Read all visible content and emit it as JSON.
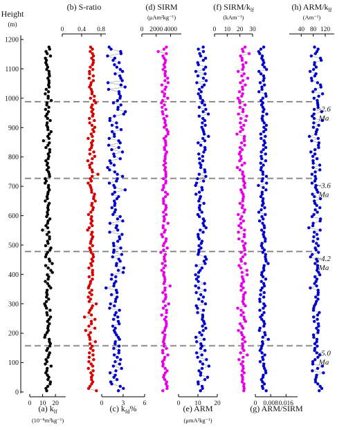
{
  "chart_data": {
    "type": "scatter",
    "y_axis": {
      "label": "Height",
      "unit": "(m)",
      "range": [
        0,
        1200
      ],
      "ticks": [
        0,
        100,
        200,
        300,
        400,
        500,
        600,
        700,
        800,
        900,
        1000,
        1100,
        1200
      ]
    },
    "age_boundaries": [
      {
        "height": 988,
        "label": "~2.6",
        "unit": "Ma"
      },
      {
        "height": 727,
        "label": "~3.6",
        "unit": "Ma"
      },
      {
        "height": 478,
        "label": "~4.2",
        "unit": "Ma"
      },
      {
        "height": 157,
        "label": "~5.0",
        "unit": "Ma"
      }
    ],
    "panels": [
      {
        "id": "a",
        "label": "(a) k",
        "sub": "lf",
        "unit": "(10⁻⁸m³kg⁻¹)",
        "label_pos": "bottom",
        "axis_pos": "bottom",
        "range": [
          0,
          28
        ],
        "ticks": [
          0,
          10,
          20
        ],
        "color": "#000000",
        "center": 14,
        "spread": 2.2
      },
      {
        "id": "b",
        "label": "(b) S-ratio",
        "unit": "",
        "label_pos": "top",
        "axis_pos": "top",
        "range": [
          0,
          0.9
        ],
        "ticks": [
          0,
          0.4,
          0.8
        ],
        "color": "#d40000",
        "center": 0.6,
        "spread": 0.07
      },
      {
        "id": "c",
        "label": "(c) k",
        "sub": "fd",
        "suffix": "%",
        "unit": "",
        "label_pos": "bottom",
        "axis_pos": "bottom",
        "range": [
          0,
          6
        ],
        "ticks": [
          0,
          3,
          6
        ],
        "color": "#0000c8",
        "center": 2.0,
        "spread": 0.9
      },
      {
        "id": "d",
        "label": "(d) SIRM",
        "unit": "(μAm²kg⁻¹)",
        "label_pos": "top",
        "axis_pos": "top",
        "range": [
          0,
          5500
        ],
        "ticks": [
          0,
          2000,
          4000
        ],
        "color": "#e600e6",
        "center": 3200,
        "spread": 400
      },
      {
        "id": "e",
        "label": "(e) ARM",
        "unit": "(μmA²kg⁻¹)",
        "label_pos": "bottom",
        "axis_pos": "bottom",
        "range": [
          0,
          20
        ],
        "ticks": [
          0,
          10,
          20
        ],
        "color": "#0000c8",
        "center": 12,
        "spread": 2.6
      },
      {
        "id": "f",
        "label": "(f) SIRM/k",
        "sub": "lf",
        "unit": "(kAm⁻¹)",
        "label_pos": "top",
        "axis_pos": "top",
        "range": [
          0,
          30
        ],
        "ticks": [
          0,
          10,
          20,
          30
        ],
        "color": "#e600e6",
        "center": 22,
        "spread": 3
      },
      {
        "id": "g",
        "label": "(g) ARM/SIRM",
        "unit": "",
        "label_pos": "bottom",
        "axis_pos": "bottom",
        "range": [
          0,
          0.022
        ],
        "ticks": [
          0,
          0.008,
          0.016
        ],
        "color": "#0000c8",
        "center": 0.004,
        "spread": 0.0018
      },
      {
        "id": "h",
        "label": "(h) ARM/k",
        "sub": "lf",
        "unit": "(Am⁻¹)",
        "label_pos": "top",
        "axis_pos": "top",
        "range": [
          0,
          150
        ],
        "ticks": [
          40,
          80,
          120
        ],
        "color": "#0000c8",
        "center": 90,
        "spread": 16
      }
    ]
  }
}
